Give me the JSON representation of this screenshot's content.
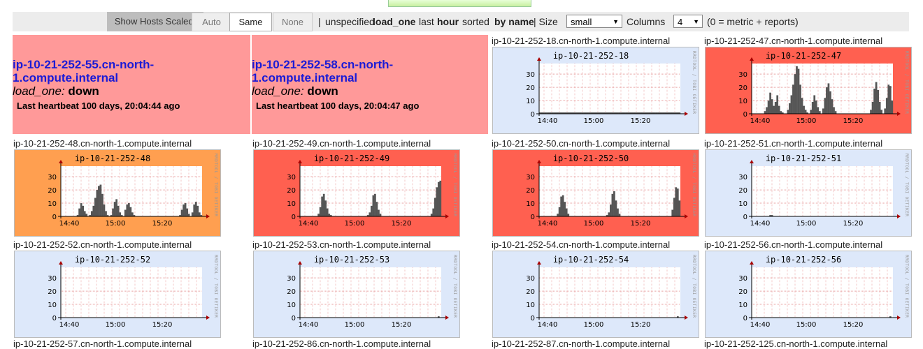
{
  "toolbar": {
    "show_hosts_scaled_label": "Show Hosts Scaled:",
    "btn_auto": "Auto",
    "btn_same": "Same",
    "btn_none": "None",
    "sep1": "|",
    "unspecified": "unspecified",
    "metric": "load_one",
    "last": "last",
    "range": "hour",
    "sorted": "sorted",
    "sort_by": "by name",
    "sep2": "| Size",
    "size_value": "small",
    "columns_label": "Columns",
    "columns_value": "4",
    "columns_note": "(0 = metric + reports)"
  },
  "down_hosts": [
    {
      "host": "ip-10-21-252-55.cn-north-1.compute.internal",
      "metric": "load_one:",
      "status": "down",
      "heartbeat": "Last heartbeat 100 days, 20:04:44 ago"
    },
    {
      "host": "ip-10-21-252-58.cn-north-1.compute.internal",
      "metric": "load_one:",
      "status": "down",
      "heartbeat": "Last heartbeat 100 days, 20:04:47 ago"
    }
  ],
  "graphs": [
    {
      "full_name": "ip-10-21-252-18.cn-north-1.compute.internal",
      "title": "ip-10-21-252-18",
      "bg": "#dde8fa",
      "values": [
        1,
        1,
        1,
        1,
        1,
        1,
        1,
        1,
        1,
        1,
        1,
        1,
        1,
        1,
        1,
        1,
        1,
        1,
        1,
        1,
        1,
        1,
        1,
        1,
        1,
        1,
        1,
        1,
        1,
        1,
        1,
        1,
        1,
        1,
        1,
        1,
        1,
        1,
        1,
        1,
        1,
        1,
        1,
        1,
        1,
        1,
        1,
        1,
        1,
        1,
        1,
        1,
        1,
        1,
        1,
        1,
        1,
        1,
        1,
        1,
        1,
        1,
        1,
        1,
        1,
        1,
        1,
        1,
        1,
        1,
        1,
        1,
        1,
        1,
        1,
        1,
        1,
        1,
        1,
        1
      ]
    },
    {
      "full_name": "ip-10-21-252-47.cn-north-1.compute.internal",
      "title": "ip-10-21-252-47",
      "bg": "#ff6050",
      "values": [
        0,
        0,
        0,
        0,
        0,
        0,
        0,
        2,
        5,
        10,
        16,
        11,
        6,
        9,
        14,
        6,
        2,
        1,
        0,
        0,
        3,
        8,
        14,
        22,
        30,
        36,
        34,
        22,
        12,
        6,
        3,
        1,
        0,
        3,
        9,
        14,
        10,
        5,
        2,
        0,
        4,
        12,
        20,
        23,
        17,
        11,
        5,
        2,
        0,
        0,
        0,
        0,
        0,
        0,
        0,
        0,
        0,
        0,
        0,
        0,
        0,
        0,
        0,
        0,
        0,
        0,
        0,
        3,
        9,
        19,
        24,
        18,
        9,
        3,
        0,
        4,
        12,
        22,
        21,
        10
      ]
    },
    {
      "full_name": "ip-10-21-252-48.cn-north-1.compute.internal",
      "title": "ip-10-21-252-48",
      "bg": "#ff9f50",
      "values": [
        0,
        0,
        0,
        0,
        0,
        0,
        0,
        0,
        0,
        1,
        6,
        10,
        8,
        4,
        2,
        0,
        1,
        4,
        8,
        14,
        20,
        23,
        24,
        17,
        9,
        4,
        1,
        0,
        1,
        6,
        11,
        13,
        8,
        3,
        1,
        0,
        5,
        9,
        10,
        7,
        3,
        1,
        0,
        0,
        0,
        0,
        0,
        0,
        0,
        0,
        0,
        0,
        0,
        0,
        0,
        0,
        0,
        0,
        0,
        0,
        0,
        0,
        0,
        0,
        0,
        0,
        0,
        1,
        5,
        9,
        10,
        6,
        2,
        0,
        3,
        9,
        11,
        8,
        3,
        1
      ]
    },
    {
      "full_name": "ip-10-21-252-49.cn-north-1.compute.internal",
      "title": "ip-10-21-252-49",
      "bg": "#ff6050",
      "values": [
        0,
        0,
        0,
        0,
        0,
        0,
        0,
        0,
        0,
        0,
        2,
        7,
        15,
        17,
        12,
        6,
        2,
        1,
        0,
        0,
        0,
        0,
        0,
        0,
        0,
        0,
        0,
        0,
        0,
        0,
        0,
        0,
        0,
        0,
        0,
        0,
        0,
        0,
        1,
        3,
        8,
        16,
        17,
        11,
        5,
        2,
        0,
        0,
        0,
        0,
        0,
        0,
        0,
        0,
        0,
        0,
        0,
        0,
        0,
        0,
        0,
        0,
        0,
        0,
        0,
        0,
        0,
        0,
        0,
        0,
        0,
        0,
        0,
        0,
        2,
        6,
        14,
        22,
        26,
        27
      ]
    },
    {
      "full_name": "ip-10-21-252-50.cn-north-1.compute.internal",
      "title": "ip-10-21-252-50",
      "bg": "#ff6050",
      "values": [
        0,
        0,
        0,
        0,
        0,
        0,
        0,
        0,
        0,
        0,
        2,
        7,
        15,
        16,
        11,
        6,
        2,
        0,
        0,
        0,
        0,
        0,
        0,
        0,
        0,
        0,
        0,
        0,
        0,
        0,
        0,
        0,
        0,
        0,
        0,
        0,
        0,
        0,
        1,
        3,
        9,
        17,
        19,
        12,
        6,
        2,
        0,
        0,
        0,
        0,
        0,
        0,
        0,
        0,
        0,
        0,
        0,
        0,
        0,
        0,
        0,
        0,
        0,
        0,
        0,
        0,
        0,
        0,
        0,
        0,
        0,
        0,
        0,
        0,
        0,
        5,
        14,
        22,
        21,
        12
      ]
    },
    {
      "full_name": "ip-10-21-252-51.cn-north-1.compute.internal",
      "title": "ip-10-21-252-51",
      "bg": "#dde8fa",
      "values": [
        0,
        0,
        0,
        0,
        0,
        0,
        0,
        0,
        0,
        0,
        1,
        1,
        0,
        0,
        0,
        0,
        0,
        0,
        0,
        0,
        0,
        0,
        0,
        0,
        0,
        0,
        0,
        0,
        0,
        0,
        0,
        0,
        0,
        0,
        0,
        0,
        0,
        0,
        0,
        0,
        0,
        0,
        0,
        0,
        0,
        0,
        0,
        0,
        0,
        0,
        0,
        0,
        0,
        0,
        0,
        0,
        0,
        0,
        0,
        0,
        0,
        0,
        0,
        0,
        0,
        0,
        0,
        0,
        0,
        0,
        0,
        0,
        0,
        0,
        0,
        0,
        0,
        0,
        0,
        0
      ]
    },
    {
      "full_name": "ip-10-21-252-52.cn-north-1.compute.internal",
      "title": "ip-10-21-252-52",
      "bg": "#dde8fa",
      "values": [
        0,
        0,
        0,
        0,
        0,
        0,
        0,
        0,
        0,
        0,
        0,
        0,
        0,
        0,
        0,
        0,
        0,
        0,
        0,
        0,
        0,
        0,
        0,
        0,
        0,
        0,
        0,
        0,
        0,
        0,
        0,
        0,
        0,
        0,
        0,
        0,
        0,
        0,
        0,
        0,
        0,
        0,
        0,
        0,
        0,
        0,
        0,
        0,
        0,
        0,
        0,
        0,
        0,
        0,
        0,
        0,
        0,
        0,
        0,
        0,
        0,
        0,
        0,
        0,
        0,
        0,
        0,
        0,
        0,
        0,
        0,
        0,
        0,
        0,
        0,
        0,
        0,
        0,
        0,
        0
      ]
    },
    {
      "full_name": "ip-10-21-252-53.cn-north-1.compute.internal",
      "title": "ip-10-21-252-53",
      "bg": "#dde8fa",
      "values": [
        0,
        0,
        0,
        0,
        0,
        0,
        0,
        0,
        0,
        0,
        0,
        0,
        0,
        0,
        0,
        0,
        0,
        0,
        0,
        0,
        0,
        0,
        0,
        0,
        0,
        0,
        0,
        0,
        0,
        0,
        0,
        0,
        0,
        0,
        0,
        0,
        0,
        0,
        0,
        0,
        0,
        0,
        0,
        0,
        0,
        0,
        0,
        0,
        0,
        0,
        0,
        0,
        0,
        0,
        0,
        0,
        0,
        0,
        0,
        0,
        0,
        0,
        0,
        0,
        0,
        0,
        0,
        0,
        0,
        0,
        0,
        0,
        0,
        0,
        0,
        0,
        0,
        0,
        1,
        0
      ]
    },
    {
      "full_name": "ip-10-21-252-54.cn-north-1.compute.internal",
      "title": "ip-10-21-252-54",
      "bg": "#dde8fa",
      "values": [
        0,
        0,
        0,
        0,
        0,
        0,
        0,
        0,
        0,
        0,
        0,
        0,
        0,
        0,
        0,
        0,
        0,
        0,
        0,
        0,
        0,
        0,
        0,
        0,
        0,
        0,
        0,
        0,
        0,
        0,
        0,
        0,
        0,
        0,
        0,
        0,
        0,
        0,
        0,
        0,
        0,
        0,
        0,
        0,
        0,
        0,
        0,
        0,
        0,
        0,
        0,
        0,
        0,
        0,
        0,
        0,
        0,
        0,
        0,
        0,
        0,
        0,
        0,
        0,
        0,
        0,
        0,
        0,
        0,
        0,
        0,
        0,
        0,
        0,
        0,
        0,
        0,
        0,
        1,
        0
      ]
    },
    {
      "full_name": "ip-10-21-252-56.cn-north-1.compute.internal",
      "title": "ip-10-21-252-56",
      "bg": "#dde8fa",
      "values": [
        0,
        0,
        0,
        0,
        0,
        0,
        0,
        0,
        0,
        0,
        0,
        0,
        0,
        0,
        0,
        0,
        0,
        0,
        0,
        0,
        0,
        0,
        0,
        0,
        0,
        0,
        0,
        0,
        0,
        0,
        0,
        0,
        0,
        0,
        0,
        0,
        0,
        0,
        0,
        0,
        0,
        0,
        0,
        0,
        0,
        0,
        0,
        0,
        0,
        0,
        0,
        0,
        0,
        0,
        0,
        0,
        0,
        0,
        0,
        0,
        0,
        0,
        0,
        0,
        0,
        0,
        0,
        0,
        0,
        0,
        0,
        0,
        0,
        0,
        0,
        0,
        0,
        0,
        1,
        0
      ]
    }
  ],
  "graph_axis": {
    "y_ticks": [
      "0",
      "10",
      "20",
      "30"
    ],
    "y_max": 38,
    "x_ticks": [
      "14:40",
      "15:00",
      "15:20"
    ],
    "watermark": "RRDTOOL / TOBI OETIKER"
  },
  "partial_names": [
    "ip-10-21-252-57.cn-north-1.compute.internal",
    "ip-10-21-252-86.cn-north-1.compute.internal",
    "ip-10-21-252-87.cn-north-1.compute.internal",
    "ip-10-21-252-125.cn-north-1.compute.internal"
  ]
}
